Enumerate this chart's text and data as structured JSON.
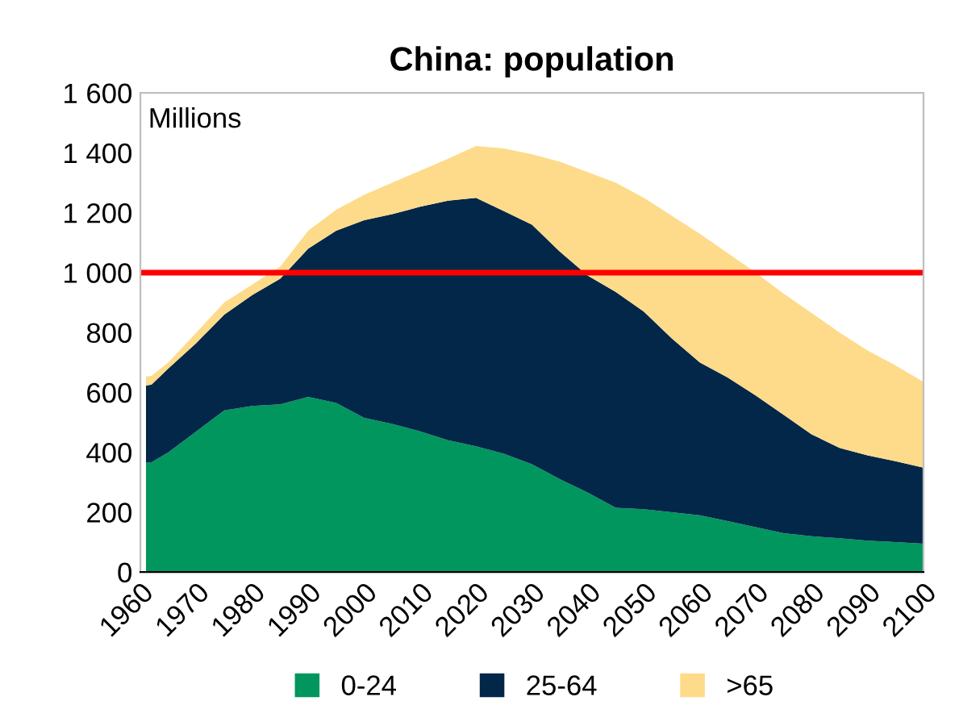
{
  "chart_data": {
    "type": "area",
    "stacked": true,
    "title": "China: population",
    "x": [
      1961,
      1962,
      1965,
      1970,
      1975,
      1980,
      1985,
      1990,
      1995,
      2000,
      2005,
      2010,
      2015,
      2020,
      2025,
      2030,
      2035,
      2040,
      2045,
      2050,
      2055,
      2060,
      2065,
      2070,
      2075,
      2080,
      2085,
      2090,
      2095,
      2100
    ],
    "series": [
      {
        "name": "0-24",
        "color": "#00965e",
        "values": [
          367,
          367,
          400,
          470,
          540,
          555,
          560,
          585,
          565,
          515,
          495,
          470,
          440,
          420,
          395,
          360,
          310,
          265,
          215,
          210,
          200,
          190,
          170,
          150,
          130,
          120,
          113,
          105,
          100,
          95
        ]
      },
      {
        "name": "25-64",
        "color": "#032749",
        "values": [
          256,
          259,
          280,
          295,
          320,
          370,
          420,
          495,
          575,
          660,
          700,
          750,
          800,
          830,
          810,
          800,
          760,
          725,
          720,
          660,
          580,
          510,
          480,
          440,
          395,
          340,
          302,
          285,
          270,
          254
        ]
      },
      {
        "name": ">65",
        "color": "#fddb8a",
        "values": [
          30,
          29,
          20,
          35,
          40,
          35,
          40,
          60,
          70,
          85,
          105,
          120,
          140,
          173,
          210,
          235,
          300,
          345,
          365,
          380,
          410,
          430,
          415,
          410,
          405,
          405,
          385,
          350,
          320,
          286
        ]
      }
    ],
    "xlim": [
      1960,
      2100
    ],
    "xticks": [
      1960,
      1970,
      1980,
      1990,
      2000,
      2010,
      2020,
      2030,
      2040,
      2050,
      2060,
      2070,
      2080,
      2090,
      2100
    ],
    "ylim": [
      0,
      1600
    ],
    "yticks": [
      0,
      200,
      400,
      600,
      800,
      {
        "value": 1000,
        "label": "1 000"
      },
      {
        "value": 1200,
        "label": "1 200"
      },
      {
        "value": 1400,
        "label": "1 400"
      },
      {
        "value": 1600,
        "label": "1 600"
      }
    ],
    "ref_lines": [
      {
        "axis": "y",
        "value": 1000,
        "color": "#ff0000"
      }
    ],
    "annotations": [
      "Millions"
    ],
    "legend": "bottom",
    "grid": false
  }
}
